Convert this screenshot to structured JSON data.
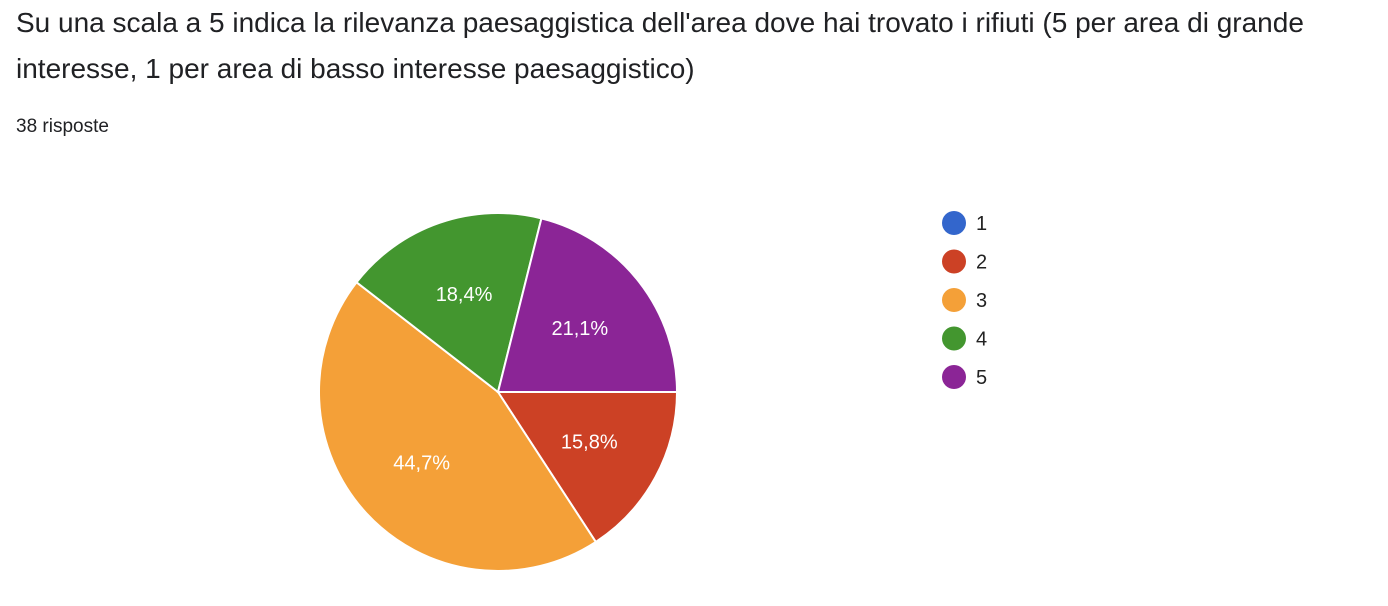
{
  "header": {
    "title": "Su una scala a 5 indica la rilevanza paesaggistica dell'area dove hai trovato i rifiuti (5 per area di grande interesse, 1 per area di basso interesse paesaggistico)",
    "responses": "38 risposte"
  },
  "chart_data": {
    "type": "pie",
    "categories": [
      "1",
      "2",
      "3",
      "4",
      "5"
    ],
    "values": [
      0,
      15.8,
      44.7,
      18.4,
      21.1
    ],
    "labels": [
      "",
      "15,8%",
      "44,7%",
      "18,4%",
      "21,1%"
    ],
    "colors": [
      "#3366cc",
      "#cc4125",
      "#f4a038",
      "#43962f",
      "#8b2596"
    ],
    "legend": "right",
    "start_angle_deg": 90,
    "direction": "clockwise"
  }
}
